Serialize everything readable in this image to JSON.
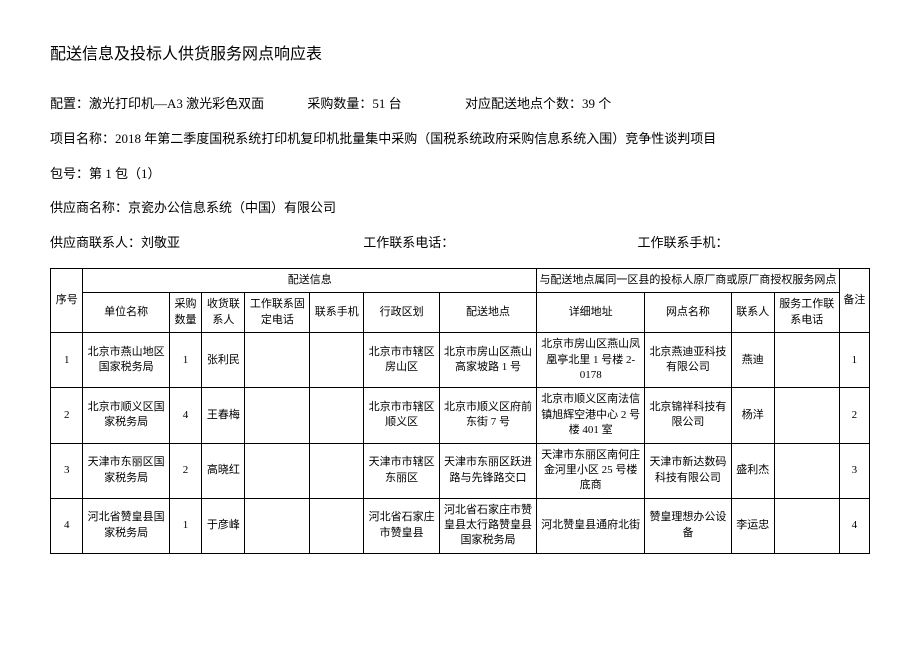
{
  "doc": {
    "title": "配送信息及投标人供货服务网点响应表"
  },
  "config": {
    "label": "配置：",
    "value": "激光打印机—A3 激光彩色双面",
    "qty_label": "采购数量：",
    "qty_value": "51 台",
    "loc_label": "对应配送地点个数：",
    "loc_value": "39 个"
  },
  "project": {
    "label": "项目名称：",
    "value": "2018 年第二季度国税系统打印机复印机批量集中采购（国税系统政府采购信息系统入围）竞争性谈判项目"
  },
  "package": {
    "label": "包号：",
    "value": "第 1 包（1）"
  },
  "supplier": {
    "name_label": "供应商名称：",
    "name_value": "京瓷办公信息系统（中国）有限公司",
    "contact_label": "供应商联系人：",
    "contact_value": "刘敬亚",
    "tel_label": "工作联系电话：",
    "tel_value": "",
    "mobile_label": "工作联系手机：",
    "mobile_value": ""
  },
  "table": {
    "group_delivery": "配送信息",
    "group_service": "与配送地点属同一区县的投标人原厂商或原厂商授权服务网点",
    "headers": {
      "seq": "序号",
      "unit": "单位名称",
      "qty": "采购数量",
      "receiver": "收货联系人",
      "tel": "工作联系固定电话",
      "mobile": "联系手机",
      "admin": "行政区划",
      "addr": "配送地点",
      "detail": "详细地址",
      "shop": "网点名称",
      "contact": "联系人",
      "svctel": "服务工作联系电话",
      "remark": "备注"
    },
    "rows": [
      {
        "seq": "1",
        "unit": "北京市燕山地区国家税务局",
        "qty": "1",
        "receiver": "张利民",
        "tel": "",
        "mobile": "",
        "admin": "北京市市辖区房山区",
        "addr": "北京市房山区燕山高家坡路 1 号",
        "detail": "北京市房山区燕山凤凰亭北里 1 号楼 2-0178",
        "shop": "北京燕迪亚科技有限公司",
        "contact": "燕迪",
        "svctel": "",
        "remark": "1"
      },
      {
        "seq": "2",
        "unit": "北京市顺义区国家税务局",
        "qty": "4",
        "receiver": "王春梅",
        "tel": "",
        "mobile": "",
        "admin": "北京市市辖区顺义区",
        "addr": "北京市顺义区府前东街 7 号",
        "detail": "北京市顺义区南法信镇旭辉空港中心 2 号楼 401 室",
        "shop": "北京锦祥科技有限公司",
        "contact": "杨洋",
        "svctel": "",
        "remark": "2"
      },
      {
        "seq": "3",
        "unit": "天津市东丽区国家税务局",
        "qty": "2",
        "receiver": "高晓红",
        "tel": "",
        "mobile": "",
        "admin": "天津市市辖区东丽区",
        "addr": "天津市东丽区跃进路与先锋路交口",
        "detail": "天津市东丽区南何庄金河里小区 25 号楼底商",
        "shop": "天津市新达数码科技有限公司",
        "contact": "盛利杰",
        "svctel": "",
        "remark": "3"
      },
      {
        "seq": "4",
        "unit": "河北省赞皇县国家税务局",
        "qty": "1",
        "receiver": "于彦峰",
        "tel": "",
        "mobile": "",
        "admin": "河北省石家庄市赞皇县",
        "addr": "河北省石家庄市赞皇县太行路赞皇县国家税务局",
        "detail": "河北赞皇县通府北街",
        "shop": "赞皇理想办公设备",
        "contact": "李运忠",
        "svctel": "",
        "remark": "4"
      }
    ]
  }
}
